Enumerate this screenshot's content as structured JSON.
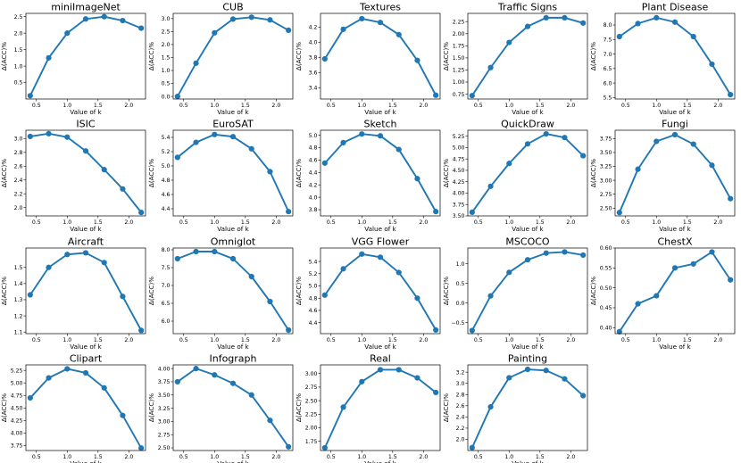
{
  "figure": {
    "series_color": "#1f77b4"
  },
  "chart_data": [
    {
      "type": "line",
      "title": "miniImageNet",
      "xlabel": "Value of k",
      "ylabel": "Δ(ACC)%",
      "x": [
        0.4,
        0.7,
        1.0,
        1.3,
        1.6,
        1.9,
        2.2
      ],
      "values": [
        0.1,
        1.25,
        2.0,
        2.43,
        2.5,
        2.38,
        2.15
      ],
      "xlim": [
        0.33,
        2.27
      ],
      "ylim": [
        0.0,
        2.6
      ],
      "xticks": [
        0.5,
        1.0,
        1.5,
        2.0
      ],
      "xtick_labels": [
        "0.5",
        "1.0",
        "1.5",
        "2.0"
      ],
      "yticks": [
        0.5,
        1.0,
        1.5,
        2.0,
        2.5
      ],
      "ytick_labels": [
        "0.5",
        "1.0",
        "1.5",
        "2.0",
        "2.5"
      ]
    },
    {
      "type": "line",
      "title": "CUB",
      "xlabel": "Value of k",
      "ylabel": "Δ(ACC)%",
      "x": [
        0.4,
        0.7,
        1.0,
        1.3,
        1.6,
        1.9,
        2.2
      ],
      "values": [
        0.0,
        1.28,
        2.45,
        2.98,
        3.05,
        2.95,
        2.55
      ],
      "xlim": [
        0.33,
        2.27
      ],
      "ylim": [
        -0.1,
        3.2
      ],
      "xticks": [
        0.5,
        1.0,
        1.5,
        2.0
      ],
      "xtick_labels": [
        "0.5",
        "1.0",
        "1.5",
        "2.0"
      ],
      "yticks": [
        0.0,
        0.5,
        1.0,
        1.5,
        2.0,
        2.5,
        3.0
      ],
      "ytick_labels": [
        "0.0",
        "0.5",
        "1.0",
        "1.5",
        "2.0",
        "2.5",
        "3.0"
      ]
    },
    {
      "type": "line",
      "title": "Textures",
      "xlabel": "Value of k",
      "ylabel": "Δ(ACC)%",
      "x": [
        0.4,
        0.7,
        1.0,
        1.3,
        1.6,
        1.9,
        2.2
      ],
      "values": [
        3.78,
        4.17,
        4.31,
        4.26,
        4.1,
        3.76,
        3.3
      ],
      "xlim": [
        0.33,
        2.27
      ],
      "ylim": [
        3.25,
        4.38
      ],
      "xticks": [
        0.5,
        1.0,
        1.5,
        2.0
      ],
      "xtick_labels": [
        "0.5",
        "1.0",
        "1.5",
        "2.0"
      ],
      "yticks": [
        3.4,
        3.6,
        3.8,
        4.0,
        4.2
      ],
      "ytick_labels": [
        "3.4",
        "3.6",
        "3.8",
        "4.0",
        "4.2"
      ]
    },
    {
      "type": "line",
      "title": "Traffic Signs",
      "xlabel": "Value of k",
      "ylabel": "Δ(ACC)%",
      "x": [
        0.4,
        0.7,
        1.0,
        1.3,
        1.6,
        1.9,
        2.2
      ],
      "values": [
        0.72,
        1.3,
        1.82,
        2.15,
        2.33,
        2.33,
        2.22
      ],
      "xlim": [
        0.33,
        2.27
      ],
      "ylim": [
        0.65,
        2.42
      ],
      "xticks": [
        0.5,
        1.0,
        1.5,
        2.0
      ],
      "xtick_labels": [
        "0.5",
        "1.0",
        "1.5",
        "2.0"
      ],
      "yticks": [
        0.75,
        1.0,
        1.25,
        1.5,
        1.75,
        2.0,
        2.25
      ],
      "ytick_labels": [
        "0.75",
        "1.00",
        "1.25",
        "1.50",
        "1.75",
        "2.00",
        "2.25"
      ]
    },
    {
      "type": "line",
      "title": "Plant Disease",
      "xlabel": "Value of k",
      "ylabel": "Δ(ACC)%",
      "x": [
        0.4,
        0.7,
        1.0,
        1.3,
        1.6,
        1.9,
        2.2
      ],
      "values": [
        7.6,
        8.05,
        8.25,
        8.1,
        7.6,
        6.65,
        5.6
      ],
      "xlim": [
        0.33,
        2.27
      ],
      "ylim": [
        5.45,
        8.4
      ],
      "xticks": [
        0.5,
        1.0,
        1.5,
        2.0
      ],
      "xtick_labels": [
        "0.5",
        "1.0",
        "1.5",
        "2.0"
      ],
      "yticks": [
        5.5,
        6.0,
        6.5,
        7.0,
        7.5,
        8.0
      ],
      "ytick_labels": [
        "5.5",
        "6.0",
        "6.5",
        "7.0",
        "7.5",
        "8.0"
      ]
    },
    {
      "type": "line",
      "title": "ISIC",
      "xlabel": "Value of k",
      "ylabel": "Δ(ACC)%",
      "x": [
        0.4,
        0.7,
        1.0,
        1.3,
        1.6,
        1.9,
        2.2
      ],
      "values": [
        3.03,
        3.07,
        3.02,
        2.82,
        2.55,
        2.27,
        1.93
      ],
      "xlim": [
        0.33,
        2.27
      ],
      "ylim": [
        1.88,
        3.12
      ],
      "xticks": [
        0.5,
        1.0,
        1.5,
        2.0
      ],
      "xtick_labels": [
        "0.5",
        "1.0",
        "1.5",
        "2.0"
      ],
      "yticks": [
        2.0,
        2.2,
        2.4,
        2.6,
        2.8,
        3.0
      ],
      "ytick_labels": [
        "2.0",
        "2.2",
        "2.4",
        "2.6",
        "2.8",
        "3.0"
      ]
    },
    {
      "type": "line",
      "title": "EuroSAT",
      "xlabel": "Value of k",
      "ylabel": "Δ(ACC)%",
      "x": [
        0.4,
        0.7,
        1.0,
        1.3,
        1.6,
        1.9,
        2.2
      ],
      "values": [
        5.12,
        5.33,
        5.44,
        5.41,
        5.24,
        4.92,
        4.36
      ],
      "xlim": [
        0.33,
        2.27
      ],
      "ylim": [
        4.3,
        5.5
      ],
      "xticks": [
        0.5,
        1.0,
        1.5,
        2.0
      ],
      "xtick_labels": [
        "0.5",
        "1.0",
        "1.5",
        "2.0"
      ],
      "yticks": [
        4.4,
        4.6,
        4.8,
        5.0,
        5.2,
        5.4
      ],
      "ytick_labels": [
        "4.4",
        "4.6",
        "4.8",
        "5.0",
        "5.2",
        "5.4"
      ]
    },
    {
      "type": "line",
      "title": "Sketch",
      "xlabel": "Value of k",
      "ylabel": "Δ(ACC)%",
      "x": [
        0.4,
        0.7,
        1.0,
        1.3,
        1.6,
        1.9,
        2.2
      ],
      "values": [
        4.55,
        4.88,
        5.02,
        4.99,
        4.77,
        4.3,
        3.77
      ],
      "xlim": [
        0.33,
        2.27
      ],
      "ylim": [
        3.7,
        5.08
      ],
      "xticks": [
        0.5,
        1.0,
        1.5,
        2.0
      ],
      "xtick_labels": [
        "0.5",
        "1.0",
        "1.5",
        "2.0"
      ],
      "yticks": [
        3.8,
        4.0,
        4.2,
        4.4,
        4.6,
        4.8,
        5.0
      ],
      "ytick_labels": [
        "3.8",
        "4.0",
        "4.2",
        "4.4",
        "4.6",
        "4.8",
        "5.0"
      ]
    },
    {
      "type": "line",
      "title": "QuickDraw",
      "xlabel": "Value of k",
      "ylabel": "Δ(ACC)%",
      "x": [
        0.4,
        0.7,
        1.0,
        1.3,
        1.6,
        1.9,
        2.2
      ],
      "values": [
        3.58,
        4.15,
        4.65,
        5.08,
        5.3,
        5.22,
        4.82
      ],
      "xlim": [
        0.33,
        2.27
      ],
      "ylim": [
        3.5,
        5.38
      ],
      "xticks": [
        0.5,
        1.0,
        1.5,
        2.0
      ],
      "xtick_labels": [
        "0.5",
        "1.0",
        "1.5",
        "2.0"
      ],
      "yticks": [
        3.5,
        3.75,
        4.0,
        4.25,
        4.5,
        4.75,
        5.0,
        5.25
      ],
      "ytick_labels": [
        "3.50",
        "3.75",
        "4.00",
        "4.25",
        "4.50",
        "4.75",
        "5.00",
        "5.25"
      ]
    },
    {
      "type": "line",
      "title": "Fungi",
      "xlabel": "Value of k",
      "ylabel": "Δ(ACC)%",
      "x": [
        0.4,
        0.7,
        1.0,
        1.3,
        1.6,
        1.9,
        2.2
      ],
      "values": [
        2.42,
        3.2,
        3.7,
        3.82,
        3.65,
        3.27,
        2.67
      ],
      "xlim": [
        0.33,
        2.27
      ],
      "ylim": [
        2.36,
        3.9
      ],
      "xticks": [
        0.5,
        1.0,
        1.5,
        2.0
      ],
      "xtick_labels": [
        "0.5",
        "1.0",
        "1.5",
        "2.0"
      ],
      "yticks": [
        2.5,
        2.75,
        3.0,
        3.25,
        3.5,
        3.75
      ],
      "ytick_labels": [
        "2.50",
        "2.75",
        "3.00",
        "3.25",
        "3.50",
        "3.75"
      ]
    },
    {
      "type": "line",
      "title": "Aircraft",
      "xlabel": "Value of k",
      "ylabel": "Δ(ACC)%",
      "x": [
        0.4,
        0.7,
        1.0,
        1.3,
        1.6,
        1.9,
        2.2
      ],
      "values": [
        1.33,
        1.5,
        1.58,
        1.59,
        1.53,
        1.32,
        1.11
      ],
      "xlim": [
        0.33,
        2.27
      ],
      "ylim": [
        1.09,
        1.62
      ],
      "xticks": [
        0.5,
        1.0,
        1.5,
        2.0
      ],
      "xtick_labels": [
        "0.5",
        "1.0",
        "1.5",
        "2.0"
      ],
      "yticks": [
        1.1,
        1.2,
        1.3,
        1.4,
        1.5
      ],
      "ytick_labels": [
        "1.1",
        "1.2",
        "1.3",
        "1.4",
        "1.5"
      ]
    },
    {
      "type": "line",
      "title": "Omniglot",
      "xlabel": "Value of k",
      "ylabel": "Δ(ACC)%",
      "x": [
        0.4,
        0.7,
        1.0,
        1.3,
        1.6,
        1.9,
        2.2
      ],
      "values": [
        7.75,
        7.95,
        7.95,
        7.75,
        7.25,
        6.55,
        5.75
      ],
      "xlim": [
        0.33,
        2.27
      ],
      "ylim": [
        5.65,
        8.05
      ],
      "xticks": [
        0.5,
        1.0,
        1.5,
        2.0
      ],
      "xtick_labels": [
        "0.5",
        "1.0",
        "1.5",
        "2.0"
      ],
      "yticks": [
        6.0,
        6.5,
        7.0,
        7.5,
        8.0
      ],
      "ytick_labels": [
        "6.0",
        "6.5",
        "7.0",
        "7.5",
        "8.0"
      ]
    },
    {
      "type": "line",
      "title": "VGG Flower",
      "xlabel": "Value of k",
      "ylabel": "Δ(ACC)%",
      "x": [
        0.4,
        0.7,
        1.0,
        1.3,
        1.6,
        1.9,
        2.2
      ],
      "values": [
        4.85,
        5.28,
        5.52,
        5.47,
        5.22,
        4.8,
        4.28
      ],
      "xlim": [
        0.33,
        2.27
      ],
      "ylim": [
        4.22,
        5.62
      ],
      "xticks": [
        0.5,
        1.0,
        1.5,
        2.0
      ],
      "xtick_labels": [
        "0.5",
        "1.0",
        "1.5",
        "2.0"
      ],
      "yticks": [
        4.4,
        4.6,
        4.8,
        5.0,
        5.2,
        5.4
      ],
      "ytick_labels": [
        "4.4",
        "4.6",
        "4.8",
        "5.0",
        "5.2",
        "5.4"
      ]
    },
    {
      "type": "line",
      "title": "MSCOCO",
      "xlabel": "Value of k",
      "ylabel": "Δ(ACC)%",
      "x": [
        0.4,
        0.7,
        1.0,
        1.3,
        1.6,
        1.9,
        2.2
      ],
      "values": [
        -0.7,
        0.18,
        0.78,
        1.1,
        1.27,
        1.3,
        1.22
      ],
      "xlim": [
        0.33,
        2.27
      ],
      "ylim": [
        -0.78,
        1.4
      ],
      "xticks": [
        0.5,
        1.0,
        1.5,
        2.0
      ],
      "xtick_labels": [
        "0.5",
        "1.0",
        "1.5",
        "2.0"
      ],
      "yticks": [
        -0.5,
        0.0,
        0.5,
        1.0
      ],
      "ytick_labels": [
        "−0.5",
        "0.0",
        "0.5",
        "1.0"
      ]
    },
    {
      "type": "line",
      "title": "ChestX",
      "xlabel": "Value of k",
      "ylabel": "Δ(ACC)%",
      "x": [
        0.4,
        0.7,
        1.0,
        1.3,
        1.6,
        1.9,
        2.2
      ],
      "values": [
        0.39,
        0.46,
        0.48,
        0.55,
        0.56,
        0.59,
        0.52
      ],
      "xlim": [
        0.33,
        2.27
      ],
      "ylim": [
        0.385,
        0.6
      ],
      "xticks": [
        0.5,
        1.0,
        1.5,
        2.0
      ],
      "xtick_labels": [
        "0.5",
        "1.0",
        "1.5",
        "2.0"
      ],
      "yticks": [
        0.4,
        0.45,
        0.5,
        0.55,
        0.6
      ],
      "ytick_labels": [
        "0.40",
        "0.45",
        "0.50",
        "0.55",
        "0.60"
      ]
    },
    {
      "type": "line",
      "title": "Clipart",
      "xlabel": "Value of k",
      "ylabel": "Δ(ACC)%",
      "x": [
        0.4,
        0.7,
        1.0,
        1.3,
        1.6,
        1.9,
        2.2
      ],
      "values": [
        4.7,
        5.1,
        5.28,
        5.2,
        4.9,
        4.35,
        3.7
      ],
      "xlim": [
        0.33,
        2.27
      ],
      "ylim": [
        3.65,
        5.36
      ],
      "xticks": [
        0.5,
        1.0,
        1.5,
        2.0
      ],
      "xtick_labels": [
        "0.5",
        "1.0",
        "1.5",
        "2.0"
      ],
      "yticks": [
        3.75,
        4.0,
        4.25,
        4.5,
        4.75,
        5.0,
        5.25
      ],
      "ytick_labels": [
        "3.75",
        "4.00",
        "4.25",
        "4.50",
        "4.75",
        "5.00",
        "5.25"
      ]
    },
    {
      "type": "line",
      "title": "Infograph",
      "xlabel": "Value of k",
      "ylabel": "Δ(ACC)%",
      "x": [
        0.4,
        0.7,
        1.0,
        1.3,
        1.6,
        1.9,
        2.2
      ],
      "values": [
        3.75,
        4.0,
        3.88,
        3.72,
        3.5,
        3.02,
        2.52
      ],
      "xlim": [
        0.33,
        2.27
      ],
      "ylim": [
        2.45,
        4.07
      ],
      "xticks": [
        0.5,
        1.0,
        1.5,
        2.0
      ],
      "xtick_labels": [
        "0.5",
        "1.0",
        "1.5",
        "2.0"
      ],
      "yticks": [
        2.5,
        2.75,
        3.0,
        3.25,
        3.5,
        3.75,
        4.0
      ],
      "ytick_labels": [
        "2.50",
        "2.75",
        "3.00",
        "3.25",
        "3.50",
        "3.75",
        "4.00"
      ]
    },
    {
      "type": "line",
      "title": "Real",
      "xlabel": "Value of k",
      "ylabel": "Δ(ACC)%",
      "x": [
        0.4,
        0.7,
        1.0,
        1.3,
        1.6,
        1.9,
        2.2
      ],
      "values": [
        1.63,
        2.38,
        2.85,
        3.07,
        3.07,
        2.92,
        2.65
      ],
      "xlim": [
        0.33,
        2.27
      ],
      "ylim": [
        1.58,
        3.16
      ],
      "xticks": [
        0.5,
        1.0,
        1.5,
        2.0
      ],
      "xtick_labels": [
        "0.5",
        "1.0",
        "1.5",
        "2.0"
      ],
      "yticks": [
        1.75,
        2.0,
        2.25,
        2.5,
        2.75,
        3.0
      ],
      "ytick_labels": [
        "1.75",
        "2.00",
        "2.25",
        "2.50",
        "2.75",
        "3.00"
      ]
    },
    {
      "type": "line",
      "title": "Painting",
      "xlabel": "Value of k",
      "ylabel": "Δ(ACC)%",
      "x": [
        0.4,
        0.7,
        1.0,
        1.3,
        1.6,
        1.9,
        2.2
      ],
      "values": [
        1.85,
        2.58,
        3.1,
        3.25,
        3.23,
        3.08,
        2.78
      ],
      "xlim": [
        0.33,
        2.27
      ],
      "ylim": [
        1.8,
        3.33
      ],
      "xticks": [
        0.5,
        1.0,
        1.5,
        2.0
      ],
      "xtick_labels": [
        "0.5",
        "1.0",
        "1.5",
        "2.0"
      ],
      "yticks": [
        2.0,
        2.2,
        2.4,
        2.6,
        2.8,
        3.0,
        3.2
      ],
      "ytick_labels": [
        "2.0",
        "2.2",
        "2.4",
        "2.6",
        "2.8",
        "3.0",
        "3.2"
      ]
    }
  ]
}
